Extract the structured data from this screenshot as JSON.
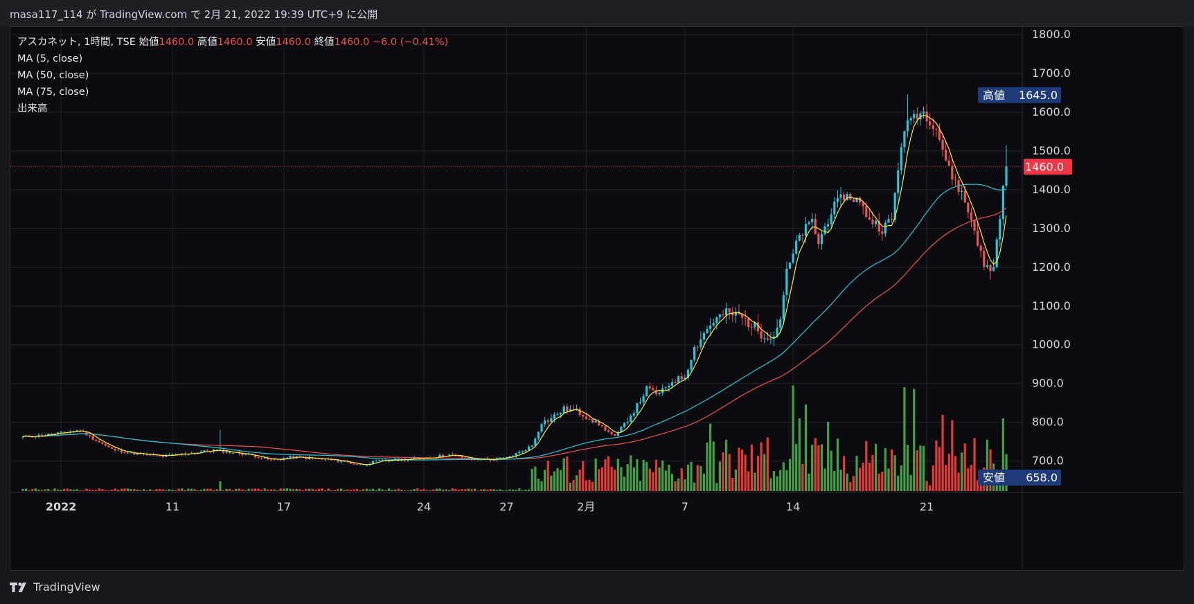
{
  "header": {
    "publish_line": "masa117_114 が TradingView.com で 2月 21, 2022 19:39 UTC+9 に公開"
  },
  "legend": {
    "symbol": "アスカネット, 1時間, TSE",
    "open_label": "始値",
    "open": "1460.0",
    "high_label": "高値",
    "high": "1460.0",
    "low_label": "安値",
    "low": "1460.0",
    "close_label": "終値",
    "close": "1460.0",
    "change": "−6.0 (−0.41%)",
    "ma5": "MA (5, close)",
    "ma50": "MA (50, close)",
    "ma75": "MA (75, close)",
    "volume": "出来高"
  },
  "price_scale": {
    "ticks": [
      "1800.0",
      "1700.0",
      "1600.0",
      "1500.0",
      "1400.0",
      "1300.0",
      "1200.0",
      "1100.0",
      "1000.0",
      "900.0",
      "800.0",
      "700.0"
    ]
  },
  "markers": {
    "high_label": "高値",
    "high_value": "1645.0",
    "last_value": "1460.0",
    "low_label": "安値",
    "low_value": "658.0"
  },
  "time_axis": {
    "labels": [
      {
        "text": "2022",
        "bar": 12,
        "bold": true
      },
      {
        "text": "11",
        "bar": 47
      },
      {
        "text": "17",
        "bar": 82
      },
      {
        "text": "24",
        "bar": 126
      },
      {
        "text": "27",
        "bar": 152
      },
      {
        "text": "2月",
        "bar": 177
      },
      {
        "text": "7",
        "bar": 208
      },
      {
        "text": "14",
        "bar": 242
      },
      {
        "text": "21",
        "bar": 284
      }
    ]
  },
  "footer": {
    "brand": "TradingView"
  },
  "colors": {
    "background": "#0c0c10",
    "up": "#26c6da",
    "down": "#ef5350",
    "vol_up": "#43a047",
    "vol_down": "#e53935",
    "ma5": "#ffeb3b",
    "ma50": "#26c6da",
    "ma75": "#ef5350",
    "marker_bg": "#1e3a78",
    "last_bg": "#f23645"
  },
  "chart_data": {
    "type": "candlestick",
    "title": "アスカネット, 1時間, TSE",
    "y_range": [
      658,
      1800
    ],
    "high": 1645,
    "low": 658,
    "last": 1460,
    "anchors": [
      [
        0,
        762
      ],
      [
        10,
        770
      ],
      [
        18,
        780
      ],
      [
        22,
        758
      ],
      [
        28,
        730
      ],
      [
        36,
        718
      ],
      [
        44,
        712
      ],
      [
        52,
        720
      ],
      [
        60,
        728
      ],
      [
        66,
        722
      ],
      [
        72,
        715
      ],
      [
        78,
        702
      ],
      [
        84,
        710
      ],
      [
        92,
        706
      ],
      [
        100,
        700
      ],
      [
        106,
        690
      ],
      [
        112,
        700
      ],
      [
        118,
        704
      ],
      [
        124,
        706
      ],
      [
        128,
        710
      ],
      [
        134,
        716
      ],
      [
        140,
        706
      ],
      [
        148,
        704
      ],
      [
        152,
        708
      ],
      [
        156,
        722
      ],
      [
        160,
        740
      ],
      [
        163,
        798
      ],
      [
        166,
        810
      ],
      [
        170,
        834
      ],
      [
        174,
        828
      ],
      [
        178,
        812
      ],
      [
        182,
        788
      ],
      [
        186,
        762
      ],
      [
        190,
        808
      ],
      [
        193,
        842
      ],
      [
        196,
        886
      ],
      [
        200,
        872
      ],
      [
        204,
        906
      ],
      [
        208,
        918
      ],
      [
        211,
        992
      ],
      [
        214,
        1030
      ],
      [
        217,
        1062
      ],
      [
        221,
        1082
      ],
      [
        225,
        1075
      ],
      [
        229,
        1052
      ],
      [
        232,
        1030
      ],
      [
        236,
        1022
      ],
      [
        238,
        1072
      ],
      [
        240,
        1185
      ],
      [
        244,
        1280
      ],
      [
        248,
        1318
      ],
      [
        250,
        1262
      ],
      [
        254,
        1345
      ],
      [
        258,
        1385
      ],
      [
        262,
        1375
      ],
      [
        266,
        1325
      ],
      [
        270,
        1300
      ],
      [
        273,
        1322
      ],
      [
        276,
        1520
      ],
      [
        279,
        1590
      ],
      [
        283,
        1600
      ],
      [
        287,
        1560
      ],
      [
        291,
        1450
      ],
      [
        295,
        1390
      ],
      [
        299,
        1300
      ],
      [
        302,
        1200
      ],
      [
        305,
        1198
      ],
      [
        307,
        1338
      ],
      [
        309,
        1460
      ]
    ],
    "volume_spikes": [
      [
        242,
        305
      ],
      [
        253,
        200
      ],
      [
        277,
        300
      ],
      [
        280,
        295
      ],
      [
        244,
        210
      ],
      [
        265,
        145
      ],
      [
        246,
        250
      ],
      [
        289,
        220
      ],
      [
        292,
        205
      ],
      [
        308,
        210
      ],
      [
        216,
        195
      ],
      [
        234,
        155
      ]
    ],
    "bars": 310
  }
}
